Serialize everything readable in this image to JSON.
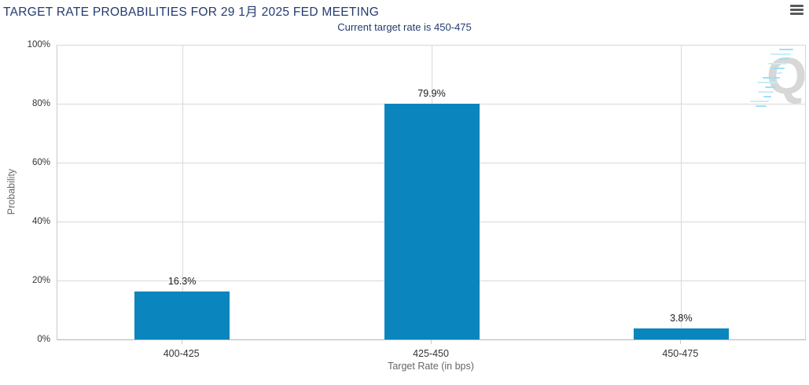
{
  "header": {
    "title": "TARGET RATE PROBABILITIES FOR 29 1月 2025 FED MEETING",
    "menu_icon": "hamburger-menu"
  },
  "chart_data": {
    "type": "bar",
    "title": "TARGET RATE PROBABILITIES FOR 29 1月 2025 FED MEETING",
    "subtitle": "Current target rate is 450-475",
    "categories": [
      "400-425",
      "425-450",
      "450-475"
    ],
    "values": [
      16.3,
      79.9,
      3.8
    ],
    "data_labels": [
      "16.3%",
      "79.9%",
      "3.8%"
    ],
    "xlabel": "Target Rate (in bps)",
    "ylabel": "Probability",
    "ylim": [
      0,
      100
    ],
    "ytick_values": [
      0,
      20,
      40,
      60,
      80,
      100
    ],
    "ytick_labels": [
      "0%",
      "20%",
      "40%",
      "60%",
      "80%",
      "100%"
    ],
    "grid": true,
    "legend": "none",
    "watermark_letter": "Q"
  },
  "colors": {
    "title_text": "#233a70",
    "subtitle_text": "#233a70",
    "bar": "#0a85be",
    "gridline": "#d8d8d8",
    "axis_line": "#b3b3b3",
    "tick_mark": "#c9c9c9",
    "tick_label_text": "#333333",
    "axis_title_text": "#666666",
    "data_label_text": "#1a1a1a",
    "watermark_q": "#d7d7d7",
    "watermark_dash_a": "#9edff5",
    "watermark_dash_b": "#c9edf9",
    "menu_icon": "#58595b"
  }
}
